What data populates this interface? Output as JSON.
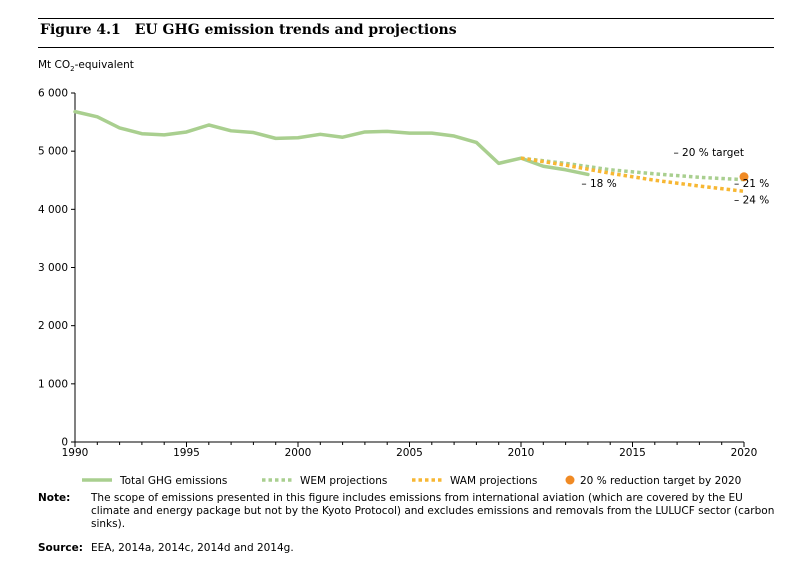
{
  "figure": {
    "number": "Figure 4.1",
    "title": "EU GHG emission trends and projections"
  },
  "note": {
    "label": "Note:",
    "text": "The scope of emissions presented in this figure includes emissions from international aviation (which are covered by the EU climate and energy package but not by the Kyoto Protocol) and excludes emissions and removals from the LULUCF sector (carbon sinks)."
  },
  "source": {
    "label": "Source:",
    "text": "EEA, 2014a, 2014c, 2014d and 2014g."
  },
  "colors": {
    "total": "#a9cf8f",
    "wem": "#a9cf8f",
    "wam": "#f7b733",
    "target": "#f08a24",
    "axis": "#000000"
  },
  "chart_data": {
    "type": "line",
    "title": "EU GHG emission trends and projections",
    "ylabel": "Mt CO2-equivalent",
    "ylabel_main": "Mt CO",
    "ylabel_sub": "2",
    "ylabel_rest": "-equivalent",
    "xlabel": "",
    "xlim": [
      1990,
      2020
    ],
    "ylim": [
      0,
      6000
    ],
    "x_ticks": [
      1990,
      1995,
      2000,
      2005,
      2010,
      2015,
      2020
    ],
    "y_ticks": [
      0,
      1000,
      2000,
      3000,
      4000,
      5000,
      6000
    ],
    "y_tick_labels": [
      "0",
      "1 000",
      "2 000",
      "3 000",
      "4 000",
      "5 000",
      "6 000"
    ],
    "series": [
      {
        "name": "Total GHG emissions",
        "style": "solid",
        "x": [
          1990,
          1991,
          1992,
          1993,
          1994,
          1995,
          1996,
          1997,
          1998,
          1999,
          2000,
          2001,
          2002,
          2003,
          2004,
          2005,
          2006,
          2007,
          2008,
          2009,
          2010,
          2011,
          2012,
          2013
        ],
        "values": [
          5680,
          5590,
          5400,
          5300,
          5280,
          5330,
          5450,
          5350,
          5320,
          5220,
          5230,
          5290,
          5240,
          5330,
          5340,
          5310,
          5310,
          5260,
          5150,
          4790,
          4880,
          4740,
          4680,
          4600
        ]
      },
      {
        "name": "WEM projections",
        "style": "dotted",
        "x": [
          2010,
          2012,
          2014,
          2016,
          2018,
          2020
        ],
        "values": [
          4880,
          4790,
          4680,
          4610,
          4550,
          4510
        ]
      },
      {
        "name": "WAM projections",
        "style": "dotted",
        "x": [
          2010,
          2012,
          2014,
          2016,
          2018,
          2020
        ],
        "values": [
          4880,
          4760,
          4620,
          4500,
          4400,
          4310
        ]
      },
      {
        "name": "20 % reduction target by 2020",
        "style": "point",
        "x": [
          2020
        ],
        "values": [
          4560
        ]
      }
    ],
    "annotations": [
      {
        "text": "– 20 % target",
        "x": 2020,
        "y": 4920,
        "anchor": "end"
      },
      {
        "text": "– 18 %",
        "x": 2013.5,
        "y": 4380,
        "anchor": "middle"
      },
      {
        "text": "– 21 %",
        "x": 2020,
        "y": 4380,
        "anchor": "start"
      },
      {
        "text": "– 24 %",
        "x": 2020,
        "y": 4100,
        "anchor": "start"
      }
    ],
    "legend": [
      {
        "label": "Total GHG emissions",
        "style": "solid"
      },
      {
        "label": "WEM projections",
        "style": "dotted-green"
      },
      {
        "label": "WAM projections",
        "style": "dotted-orange"
      },
      {
        "label": "20 % reduction target by 2020",
        "style": "point"
      }
    ]
  }
}
